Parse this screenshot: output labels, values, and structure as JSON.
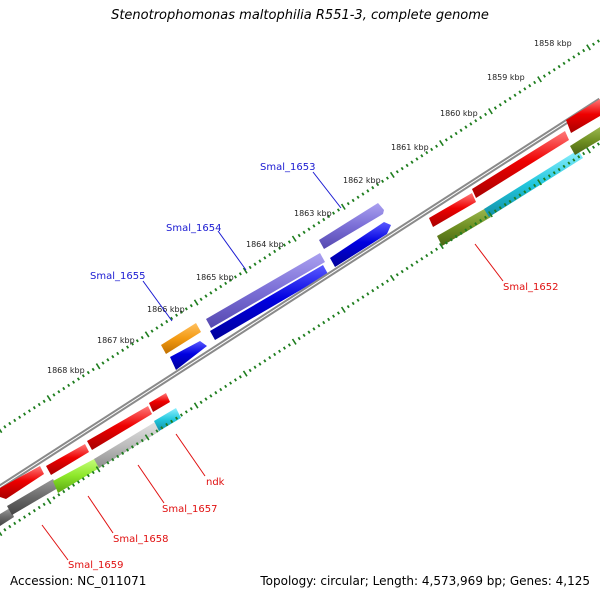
{
  "title": "Stenotrophomonas maltophilia R551-3, complete genome",
  "footer": {
    "accession": "Accession: NC_011071",
    "summary": "Topology: circular; Length: 4,573,969 bp; Genes: 4,125"
  },
  "ticks": [
    {
      "label": "1858 kbp"
    },
    {
      "label": "1859 kbp"
    },
    {
      "label": "1860 kbp"
    },
    {
      "label": "1861 kbp"
    },
    {
      "label": "1862 kbp"
    },
    {
      "label": "1863 kbp"
    },
    {
      "label": "1864 kbp"
    },
    {
      "label": "1865 kbp"
    },
    {
      "label": "1866 kbp"
    },
    {
      "label": "1867 kbp"
    },
    {
      "label": "1868 kbp"
    }
  ],
  "gene_labels": {
    "smal_1653": "Smal_1653",
    "smal_1654": "Smal_1654",
    "smal_1655": "Smal_1655",
    "smal_1652": "Smal_1652",
    "ndk": "ndk",
    "smal_1657": "Smal_1657",
    "smal_1658": "Smal_1658",
    "smal_1659": "Smal_1659"
  },
  "colors": {
    "backbone": "#8a8a8a",
    "tick_green": "#1e7d1e",
    "gene_red": "#ee0000",
    "gene_blue": "#0000e0",
    "gene_purple": "#7b6fd6",
    "gene_orange": "#f39a12",
    "gene_olive": "#6f8f22",
    "gene_cyan": "#22c7dd",
    "gene_gray_light": "#bdbdbd",
    "gene_gray_dark": "#6a6a6a",
    "gene_lime": "#8ee82a",
    "label_blue": "#1a1ad2",
    "label_red": "#e01010"
  }
}
